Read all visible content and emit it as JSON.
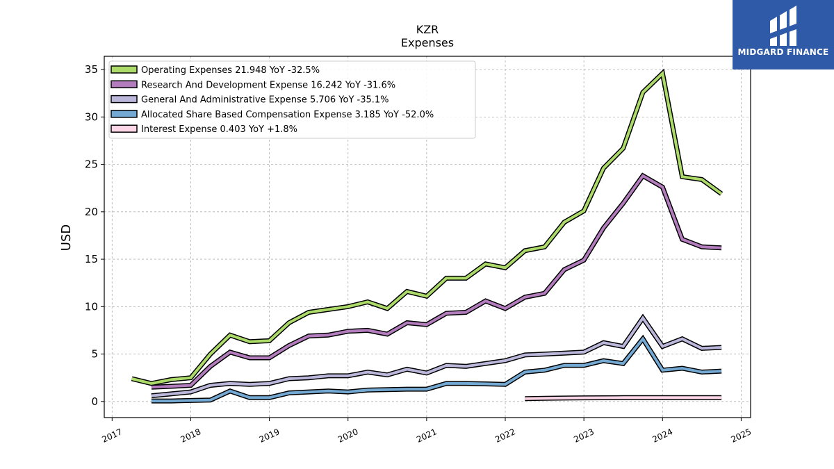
{
  "logo": {
    "text": "MIDGARD FINANCE",
    "background": "#2f5aa8"
  },
  "chart_data": {
    "type": "line",
    "title": "KZR",
    "subtitle": "Expenses",
    "xlabel": "",
    "ylabel": "USD",
    "xlim": [
      2016.9,
      2025.12
    ],
    "ylim": [
      -1.7,
      36.4
    ],
    "x_ticks": [
      "2017",
      "2018",
      "2019",
      "2020",
      "2021",
      "2022",
      "2023",
      "2024",
      "2025"
    ],
    "y_ticks": [
      "0",
      "5",
      "10",
      "15",
      "20",
      "25",
      "30",
      "35"
    ],
    "grid": true,
    "legend_position": "top-left",
    "series": [
      {
        "name": "Operating Expenses",
        "legend_label": "Operating Expenses  21.948 YoY -32.5%",
        "color": "#addb6a",
        "points": [
          [
            2017.25,
            2.4
          ],
          [
            2017.5,
            1.9
          ],
          [
            2017.75,
            2.3
          ],
          [
            2018.0,
            2.5
          ],
          [
            2018.25,
            5.0
          ],
          [
            2018.5,
            7.0
          ],
          [
            2018.75,
            6.3
          ],
          [
            2019.0,
            6.4
          ],
          [
            2019.25,
            8.3
          ],
          [
            2019.5,
            9.4
          ],
          [
            2019.75,
            9.7
          ],
          [
            2020.0,
            10.0
          ],
          [
            2020.25,
            10.5
          ],
          [
            2020.5,
            9.8
          ],
          [
            2020.75,
            11.6
          ],
          [
            2021.0,
            11.1
          ],
          [
            2021.25,
            13.0
          ],
          [
            2021.5,
            13.0
          ],
          [
            2021.75,
            14.5
          ],
          [
            2022.0,
            14.1
          ],
          [
            2022.25,
            15.9
          ],
          [
            2022.5,
            16.3
          ],
          [
            2022.75,
            18.9
          ],
          [
            2023.0,
            20.1
          ],
          [
            2023.25,
            24.6
          ],
          [
            2023.5,
            26.7
          ],
          [
            2023.75,
            32.6
          ],
          [
            2024.0,
            34.6
          ],
          [
            2024.25,
            23.7
          ],
          [
            2024.5,
            23.4
          ],
          [
            2024.75,
            21.9
          ]
        ]
      },
      {
        "name": "Research And Development Expense",
        "legend_label": "Research And Development Expense  16.242 YoY -31.6%",
        "color": "#b27cbd",
        "points": [
          [
            2017.5,
            1.5
          ],
          [
            2017.75,
            1.6
          ],
          [
            2018.0,
            1.7
          ],
          [
            2018.25,
            3.7
          ],
          [
            2018.5,
            5.2
          ],
          [
            2018.75,
            4.6
          ],
          [
            2019.0,
            4.6
          ],
          [
            2019.25,
            5.9
          ],
          [
            2019.5,
            6.9
          ],
          [
            2019.75,
            7.0
          ],
          [
            2020.0,
            7.4
          ],
          [
            2020.25,
            7.5
          ],
          [
            2020.5,
            7.1
          ],
          [
            2020.75,
            8.3
          ],
          [
            2021.0,
            8.1
          ],
          [
            2021.25,
            9.3
          ],
          [
            2021.5,
            9.4
          ],
          [
            2021.75,
            10.6
          ],
          [
            2022.0,
            9.8
          ],
          [
            2022.25,
            11.0
          ],
          [
            2022.5,
            11.4
          ],
          [
            2022.75,
            13.9
          ],
          [
            2023.0,
            14.9
          ],
          [
            2023.25,
            18.3
          ],
          [
            2023.5,
            20.9
          ],
          [
            2023.75,
            23.8
          ],
          [
            2024.0,
            22.6
          ],
          [
            2024.25,
            17.1
          ],
          [
            2024.5,
            16.3
          ],
          [
            2024.75,
            16.2
          ]
        ]
      },
      {
        "name": "General And Administrative Expense",
        "legend_label": "General And Administrative Expense  5.706 YoY -35.1%",
        "color": "#bbb7da",
        "points": [
          [
            2017.5,
            0.6
          ],
          [
            2017.75,
            0.8
          ],
          [
            2018.0,
            1.0
          ],
          [
            2018.25,
            1.7
          ],
          [
            2018.5,
            1.9
          ],
          [
            2018.75,
            1.8
          ],
          [
            2019.0,
            1.9
          ],
          [
            2019.25,
            2.4
          ],
          [
            2019.5,
            2.5
          ],
          [
            2019.75,
            2.7
          ],
          [
            2020.0,
            2.7
          ],
          [
            2020.25,
            3.1
          ],
          [
            2020.5,
            2.8
          ],
          [
            2020.75,
            3.4
          ],
          [
            2021.0,
            3.0
          ],
          [
            2021.25,
            3.8
          ],
          [
            2021.5,
            3.7
          ],
          [
            2021.75,
            4.0
          ],
          [
            2022.0,
            4.3
          ],
          [
            2022.25,
            4.9
          ],
          [
            2022.5,
            5.0
          ],
          [
            2022.75,
            5.1
          ],
          [
            2023.0,
            5.2
          ],
          [
            2023.25,
            6.2
          ],
          [
            2023.5,
            5.8
          ],
          [
            2023.75,
            8.8
          ],
          [
            2024.0,
            5.8
          ],
          [
            2024.25,
            6.6
          ],
          [
            2024.5,
            5.6
          ],
          [
            2024.75,
            5.7
          ]
        ]
      },
      {
        "name": "Allocated Share Based Compensation Expense",
        "legend_label": "Allocated Share Based Compensation Expense  3.185 YoY -52.0%",
        "color": "#73a9d2",
        "points": [
          [
            2017.5,
            0.05
          ],
          [
            2017.75,
            0.05
          ],
          [
            2018.0,
            0.1
          ],
          [
            2018.25,
            0.15
          ],
          [
            2018.5,
            1.1
          ],
          [
            2018.75,
            0.4
          ],
          [
            2019.0,
            0.4
          ],
          [
            2019.25,
            0.9
          ],
          [
            2019.5,
            1.0
          ],
          [
            2019.75,
            1.1
          ],
          [
            2020.0,
            1.0
          ],
          [
            2020.25,
            1.2
          ],
          [
            2020.5,
            1.25
          ],
          [
            2020.75,
            1.3
          ],
          [
            2021.0,
            1.3
          ],
          [
            2021.25,
            1.9
          ],
          [
            2021.5,
            1.9
          ],
          [
            2021.75,
            1.85
          ],
          [
            2022.0,
            1.8
          ],
          [
            2022.25,
            3.1
          ],
          [
            2022.5,
            3.3
          ],
          [
            2022.75,
            3.8
          ],
          [
            2023.0,
            3.8
          ],
          [
            2023.25,
            4.3
          ],
          [
            2023.5,
            4.0
          ],
          [
            2023.75,
            6.6
          ],
          [
            2024.0,
            3.3
          ],
          [
            2024.25,
            3.5
          ],
          [
            2024.5,
            3.1
          ],
          [
            2024.75,
            3.2
          ]
        ]
      },
      {
        "name": "Interest Expense",
        "legend_label": "Interest Expense  0.403 YoY +1.8%",
        "color": "#fcd6e7",
        "points": [
          [
            2022.25,
            0.3
          ],
          [
            2022.5,
            0.33
          ],
          [
            2022.75,
            0.36
          ],
          [
            2023.0,
            0.38
          ],
          [
            2023.25,
            0.39
          ],
          [
            2023.5,
            0.4
          ],
          [
            2023.75,
            0.4
          ],
          [
            2024.0,
            0.4
          ],
          [
            2024.25,
            0.4
          ],
          [
            2024.5,
            0.4
          ],
          [
            2024.75,
            0.403
          ]
        ]
      }
    ]
  }
}
